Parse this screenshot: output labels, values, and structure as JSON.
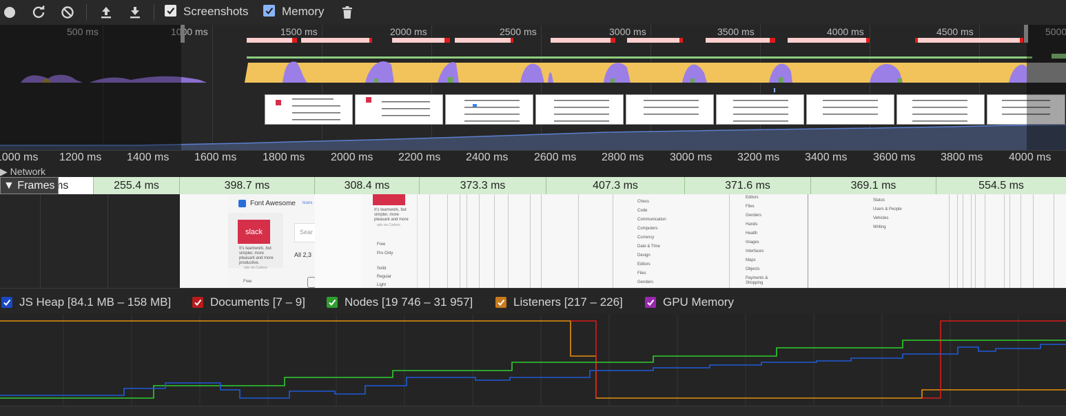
{
  "toolbar": {
    "record_icon": "record-icon",
    "reload_icon": "reload-icon",
    "clear_icon": "clear-icon",
    "upload_icon": "upload-icon",
    "download_icon": "download-icon",
    "screenshots_label": "Screenshots",
    "screenshots_checked": true,
    "memory_label": "Memory",
    "memory_checked": true,
    "trash_icon": "trash-icon"
  },
  "overview": {
    "ticks": [
      "500 ms",
      "1000 ms",
      "1500 ms",
      "2000 ms",
      "2500 ms",
      "3000 ms",
      "3500 ms",
      "4000 ms",
      "4500 ms",
      "5000"
    ],
    "colors": {
      "scripting": "#f2c35b",
      "rendering": "#9b7fe6",
      "painting": "#6aa84f",
      "long_task": "#ffcfcf",
      "long_task_flag": "#e21a1a",
      "heap_line": "#5b7fcf"
    }
  },
  "ruler": {
    "ticks": [
      "1000 ms",
      "1200 ms",
      "1400 ms",
      "1600 ms",
      "1800 ms",
      "2000 ms",
      "2200 ms",
      "2400 ms",
      "2600 ms",
      "2800 ms",
      "3000 ms",
      "3200 ms",
      "3400 ms",
      "3600 ms",
      "3800 ms",
      "4000 ms"
    ]
  },
  "tracks": {
    "network_label": "Network",
    "frames_label": "Frames",
    "frames_first_partial": "ms"
  },
  "frames": [
    "255.4 ms",
    "398.7 ms",
    "308.4 ms",
    "373.3 ms",
    "407.3 ms",
    "371.6 ms",
    "369.1 ms",
    "554.5 ms"
  ],
  "screenshots": {
    "site_title": "Font Awesome",
    "site_nav": "Icons",
    "ad_brand": "slack",
    "ad_text": [
      "It's teamwork, but",
      "simpler, more",
      "pleasant and more",
      "productive."
    ],
    "ad_via": "ads via Carbon",
    "search_placeholder": "Sear",
    "count_text": "All 2,3",
    "filter_free": "Free",
    "filter_pro": "Pro Only",
    "filter_solid": "Solid",
    "filter_regular": "Regular",
    "filter_light": "Light",
    "cats_a": [
      "Chess",
      "Code",
      "Communication",
      "Computers",
      "Currency",
      "Date & Time",
      "Design",
      "Editors",
      "Files",
      "Genders"
    ],
    "cats_b": [
      "Editors",
      "Files",
      "Genders",
      "Hands",
      "Health",
      "Images",
      "Interfaces",
      "Maps",
      "Objects",
      "Payments &",
      "Shopping"
    ],
    "cats_c": [
      "Status",
      "Users & People",
      "Vehicles",
      "Writing"
    ]
  },
  "memory": {
    "legend": [
      {
        "label": "JS Heap [84.1 MB – 158 MB]",
        "color": "#1a47c4",
        "checked": true
      },
      {
        "label": "Documents [7 – 9]",
        "color": "#b71c1c",
        "checked": true
      },
      {
        "label": "Nodes [19 746 – 31 957]",
        "color": "#2e9e2e",
        "checked": true
      },
      {
        "label": "Listeners [217 – 226]",
        "color": "#c77a1d",
        "checked": true
      },
      {
        "label": "GPU Memory",
        "color": "#9b27af",
        "checked": true
      }
    ]
  }
}
